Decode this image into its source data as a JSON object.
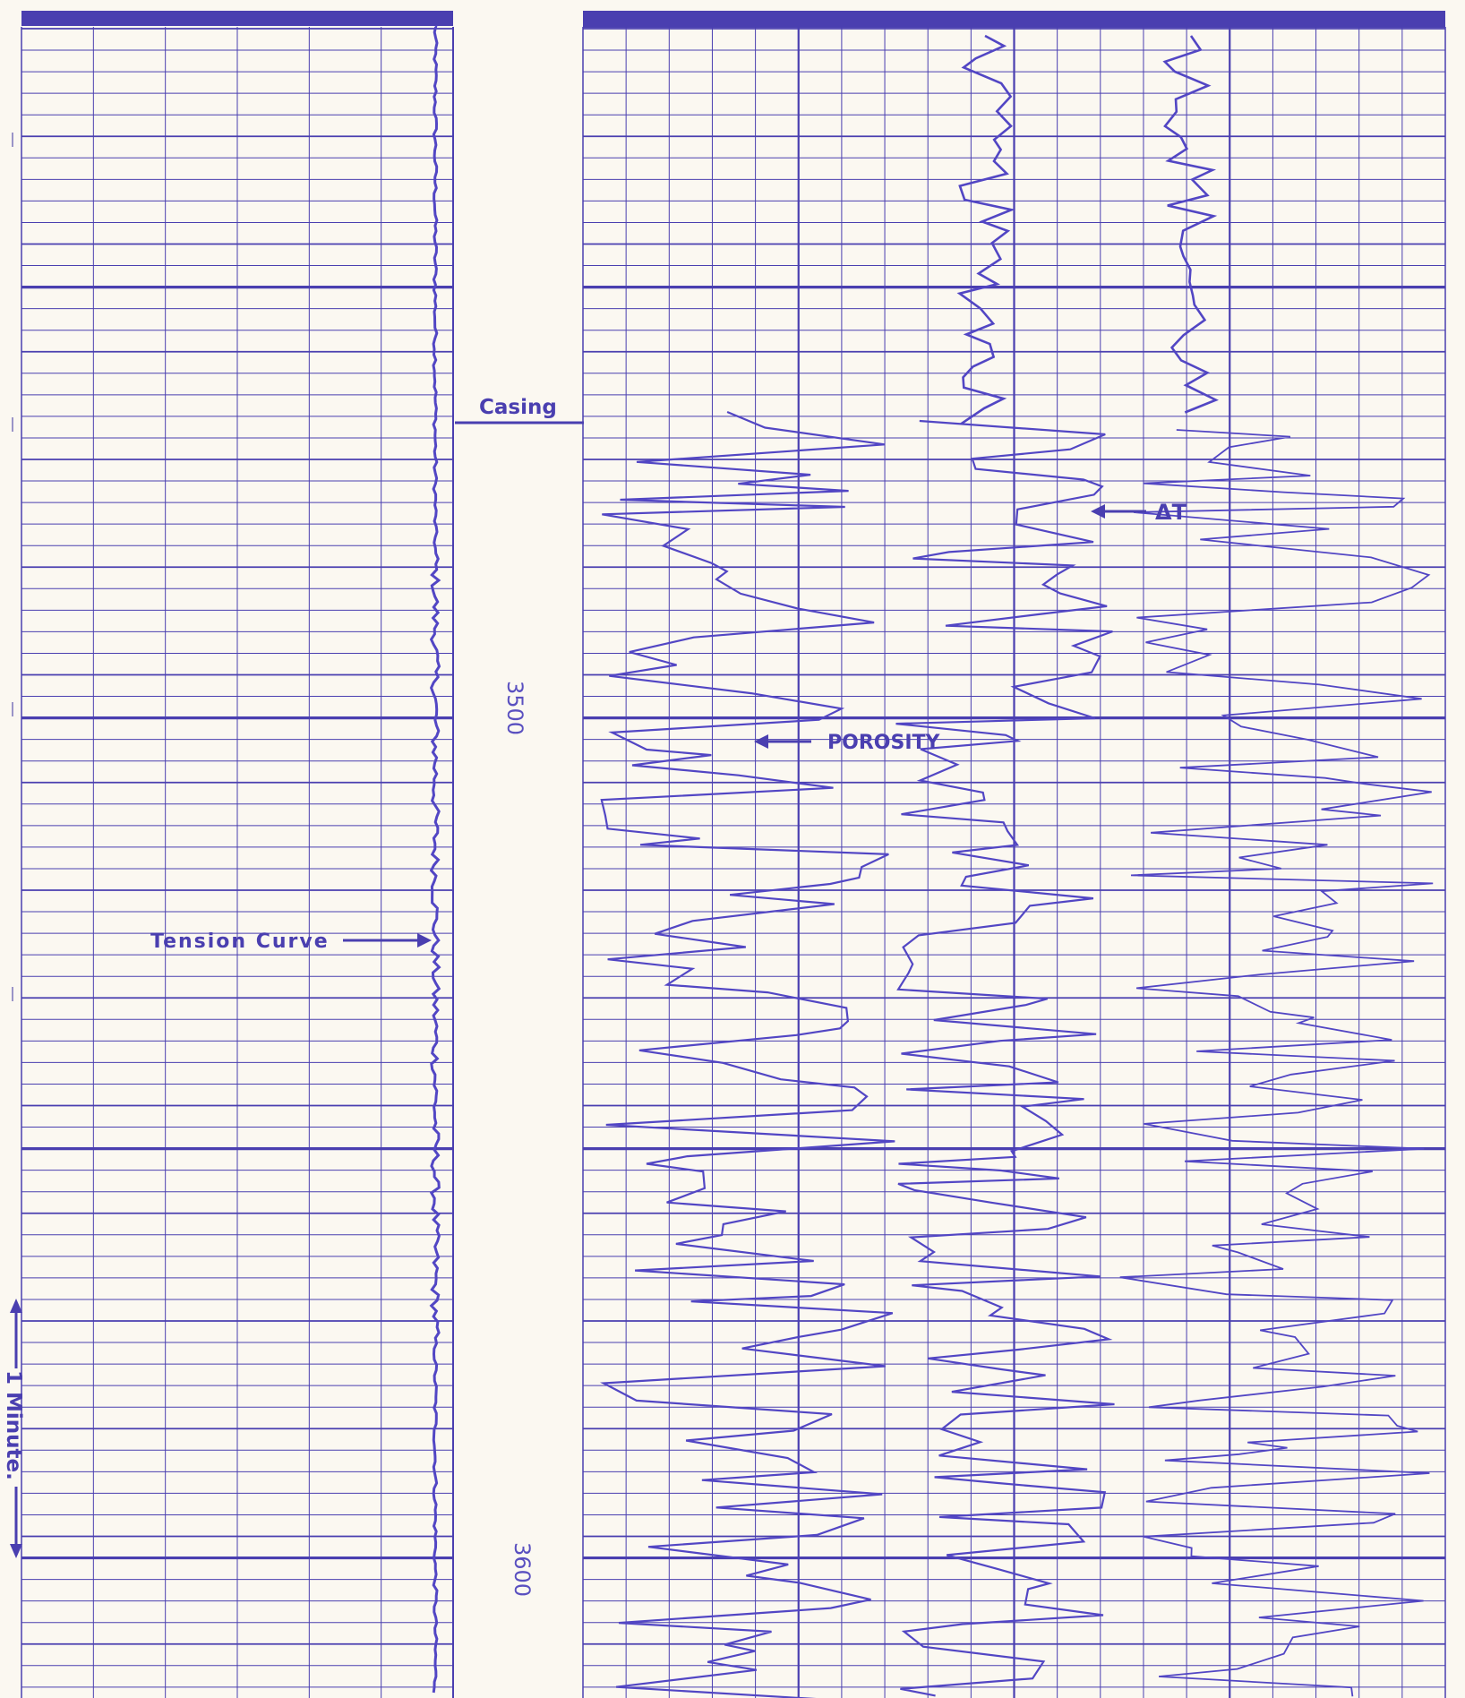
{
  "labels": {
    "casing": "Casing",
    "tension": "Tension Curve",
    "porosity": "POROSITY",
    "delta_t": "ΔT",
    "minute": "1 Minute."
  },
  "depths": [
    "3500",
    "3600"
  ],
  "colors": {
    "paper": "#fbf8f1",
    "ink": "#4a3fb0",
    "trace": "#5246c4"
  },
  "icons": {
    "arrow": "left-pointing arrow",
    "minute_arrows": "double-ended vertical arrow"
  }
}
